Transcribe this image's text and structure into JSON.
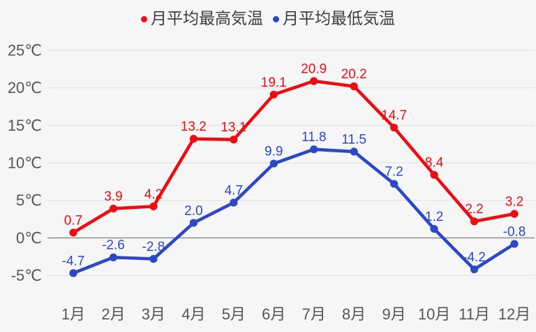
{
  "legend": {
    "items": [
      {
        "label": "月平均最高気温",
        "color": "#ee0c10",
        "marker": "circle-icon"
      },
      {
        "label": "月平均最低気温",
        "color": "#2c48c8",
        "marker": "circle-icon"
      }
    ]
  },
  "chart_data": {
    "type": "line",
    "categories": [
      "1月",
      "2月",
      "3月",
      "4月",
      "5月",
      "6月",
      "7月",
      "8月",
      "9月",
      "10月",
      "11月",
      "12月"
    ],
    "series": [
      {
        "name": "月平均最高気温",
        "color": "#ee0c10",
        "values": [
          0.7,
          3.9,
          4.2,
          13.2,
          13.1,
          19.1,
          20.9,
          20.2,
          14.7,
          8.4,
          2.2,
          3.2
        ]
      },
      {
        "name": "月平均最低気温",
        "color": "#2c48c8",
        "values": [
          -4.7,
          -2.6,
          -2.8,
          2.0,
          4.7,
          9.9,
          11.8,
          11.5,
          7.2,
          1.2,
          -4.2,
          -0.8
        ]
      }
    ],
    "y_axis": {
      "ticks": [
        25,
        20,
        15,
        10,
        5,
        0,
        -5
      ],
      "tick_suffix": "℃",
      "min": -5,
      "max": 25
    },
    "grid": {
      "horizontal": true,
      "vertical": false,
      "line_color": "#e6e6e8",
      "zero_line_color": "#8f8f92"
    },
    "legend_position": "top",
    "data_labels": true,
    "background": "#f6f6f7",
    "text_colors": {
      "axis": "#56565a",
      "legend": "#3d3d3d"
    }
  }
}
